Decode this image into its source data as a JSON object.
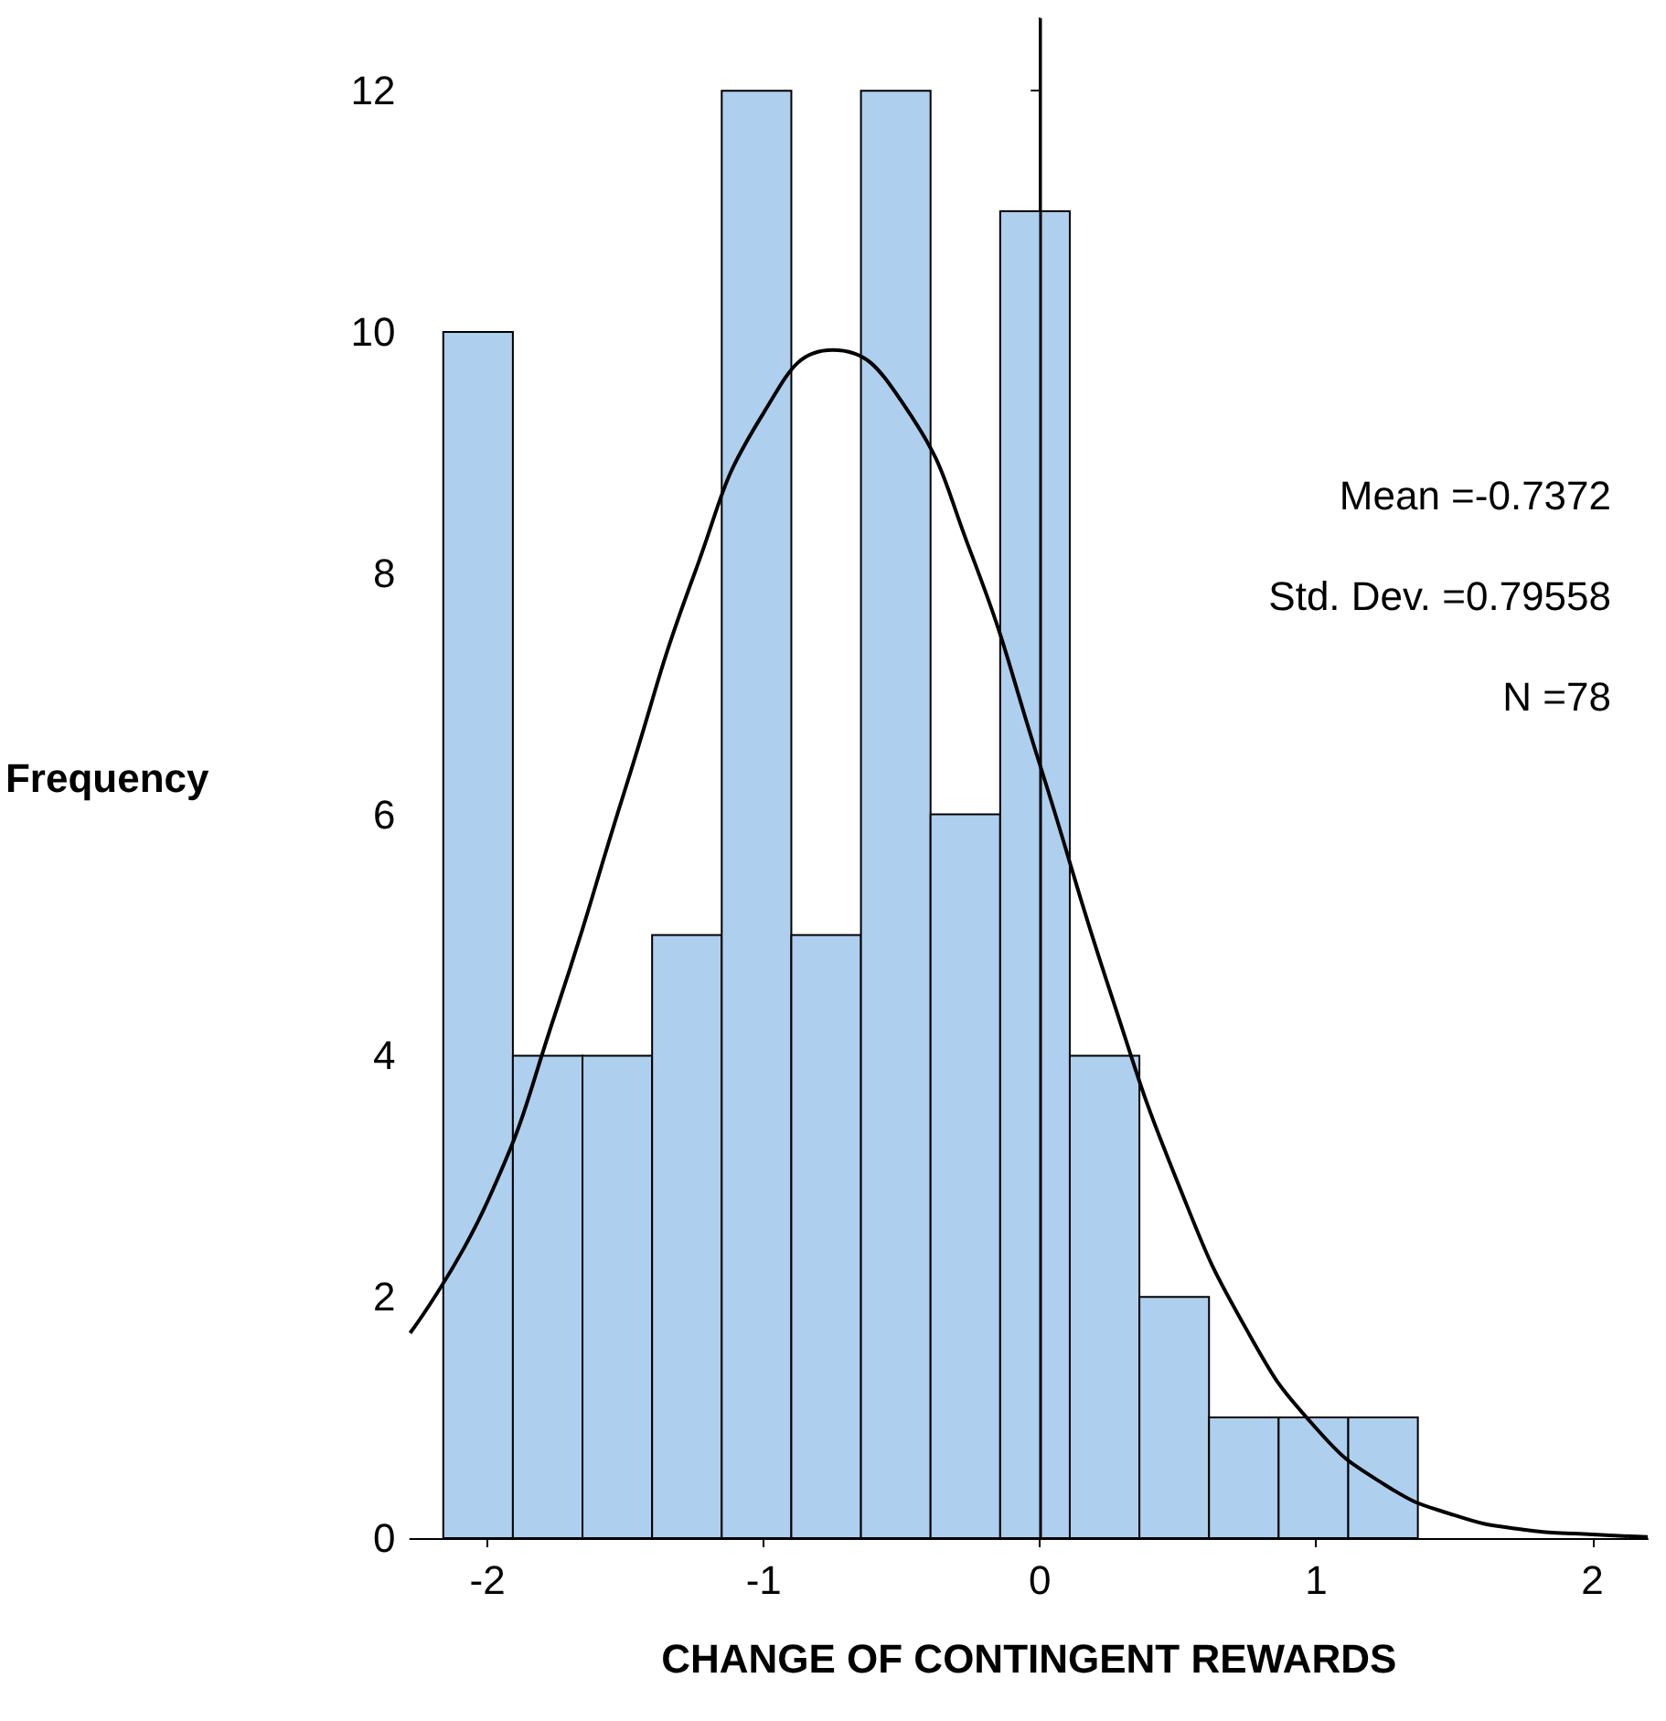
{
  "chart_data": {
    "type": "histogram",
    "xlabel": "CHANGE OF CONTINGENT REWARDS",
    "ylabel": "Frequency",
    "bins": [
      -2.16,
      -1.908,
      -1.656,
      -1.404,
      -1.152,
      -0.9,
      -0.648,
      -0.396,
      -0.144,
      0.108,
      0.36,
      0.612,
      0.864,
      1.116,
      1.368
    ],
    "values": [
      10,
      4,
      4,
      5,
      12,
      5,
      12,
      6,
      11,
      4,
      2,
      1,
      1,
      1
    ],
    "color": "#aecfee",
    "series": [
      {
        "type": "line",
        "color": "#000000",
        "x": [
          -2.28,
          -2.0,
          -1.75,
          -1.5,
          -1.25,
          -1.0,
          -0.75,
          -0.5,
          -0.25,
          0,
          0.25,
          0.5,
          0.75,
          1.0,
          1.25,
          1.5,
          1.75,
          2.0,
          2.2
        ],
        "values": [
          1.7,
          2.79,
          4.38,
          6.22,
          8.0,
          9.33,
          9.85,
          9.42,
          8.17,
          6.41,
          4.56,
          2.94,
          1.72,
          0.91,
          0.44,
          0.19,
          0.07,
          0.03,
          0.01
        ]
      }
    ],
    "ref_lines": [
      {
        "axis": "x",
        "value": 0,
        "color": "#000000"
      }
    ],
    "annotations": [
      "Mean =-0.7372",
      "Std. Dev. =0.79558",
      "N =78"
    ],
    "xlim": [
      -2.28,
      2.2
    ],
    "xticks": [
      -2,
      -1,
      0,
      1,
      2
    ],
    "ylim": [
      0,
      12.6
    ],
    "yticks": [
      0,
      2,
      4,
      6,
      8,
      10,
      12
    ],
    "grid": false
  }
}
